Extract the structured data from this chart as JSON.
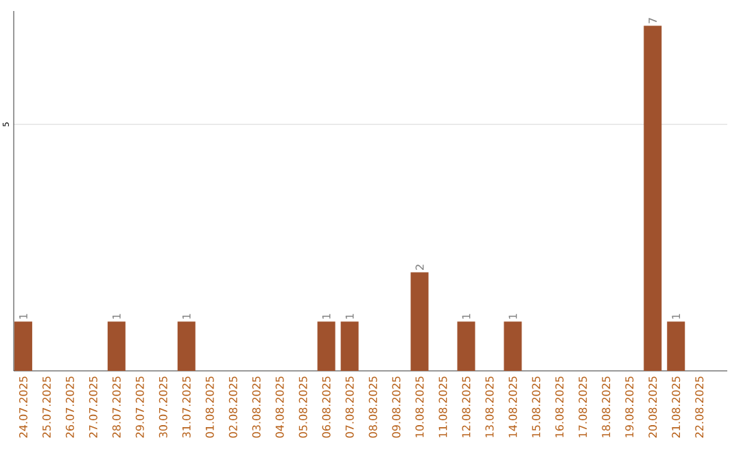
{
  "chart_data": {
    "type": "bar",
    "categories": [
      "24.07.2025",
      "25.07.2025",
      "26.07.2025",
      "27.07.2025",
      "28.07.2025",
      "29.07.2025",
      "30.07.2025",
      "31.07.2025",
      "01.08.2025",
      "02.08.2025",
      "03.08.2025",
      "04.08.2025",
      "05.08.2025",
      "06.08.2025",
      "07.08.2025",
      "08.08.2025",
      "09.08.2025",
      "10.08.2025",
      "11.08.2025",
      "12.08.2025",
      "13.08.2025",
      "14.08.2025",
      "15.08.2025",
      "16.08.2025",
      "17.08.2025",
      "18.08.2025",
      "19.08.2025",
      "20.08.2025",
      "21.08.2025",
      "22.08.2025"
    ],
    "values": [
      1,
      0,
      0,
      0,
      1,
      0,
      0,
      1,
      0,
      0,
      0,
      0,
      0,
      1,
      1,
      0,
      0,
      2,
      0,
      1,
      0,
      1,
      0,
      0,
      0,
      0,
      0,
      7,
      1,
      0
    ],
    "value_labels": [
      "1",
      null,
      null,
      null,
      "1",
      null,
      null,
      "1",
      null,
      null,
      null,
      null,
      null,
      "1",
      "1",
      null,
      null,
      "2",
      null,
      "1",
      null,
      "1",
      null,
      null,
      null,
      null,
      null,
      "7",
      "1",
      null
    ],
    "color": "#a0522d",
    "ylim": [
      0,
      7.3
    ],
    "yticks": [
      5
    ],
    "grid": "y"
  }
}
